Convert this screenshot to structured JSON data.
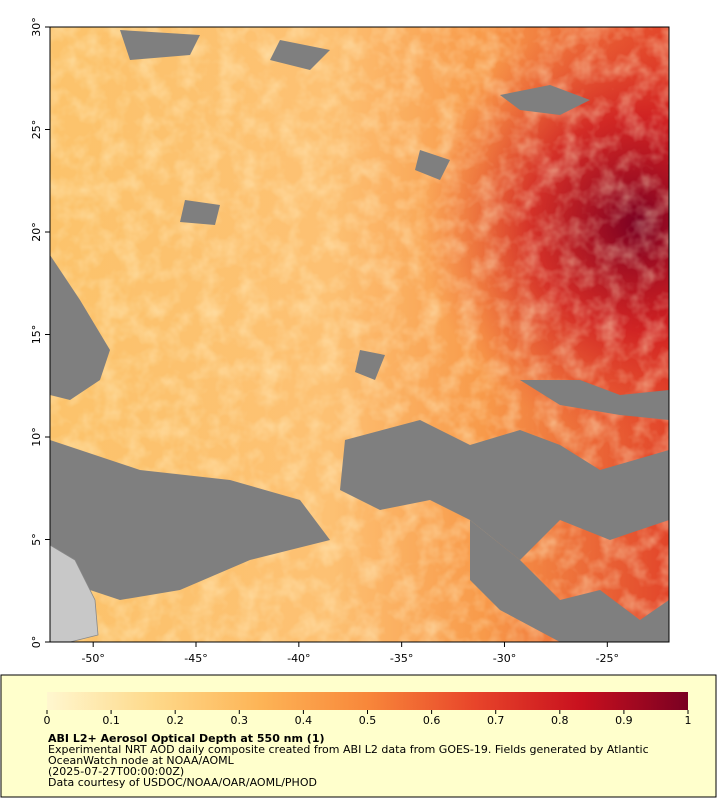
{
  "map": {
    "xlim": [
      -52.1,
      -22
    ],
    "ylim": [
      0,
      30
    ],
    "xticks": [
      {
        "value": -50,
        "label": "-50°"
      },
      {
        "value": -45,
        "label": "-45°"
      },
      {
        "value": -40,
        "label": "-40°"
      },
      {
        "value": -35,
        "label": "-35°"
      },
      {
        "value": -30,
        "label": "-30°"
      },
      {
        "value": -25,
        "label": "-25°"
      }
    ],
    "yticks": [
      {
        "value": 0,
        "label": "0°"
      },
      {
        "value": 5,
        "label": "5°"
      },
      {
        "value": 10,
        "label": "10°"
      },
      {
        "value": 15,
        "label": "15°"
      },
      {
        "value": 20,
        "label": "20°"
      },
      {
        "value": 25,
        "label": "25°"
      },
      {
        "value": 30,
        "label": "30°"
      }
    ]
  },
  "colorbar": {
    "lim": [
      0,
      1
    ],
    "ticks": [
      0,
      0.1,
      0.2,
      0.3,
      0.4,
      0.5,
      0.6,
      0.7,
      0.8,
      0.9,
      1
    ],
    "colors": [
      "#fff7cf",
      "#fed98a",
      "#fdb456",
      "#f8873a",
      "#e8452a",
      "#c8101e",
      "#7a0022"
    ]
  },
  "legend": {
    "title": "ABI L2+ Aerosol Optical Depth at 550 nm (1)",
    "lines": [
      "Experimental NRT AOD daily composite created from ABI L2 data from GOES-19. Fields generated by Atlantic",
      "OceanWatch node at NOAA/AOML",
      "(2025-07-27T00:00:00Z)",
      "Data courtesy of USDOC/NOAA/OAR/AOML/PHOD"
    ]
  }
}
